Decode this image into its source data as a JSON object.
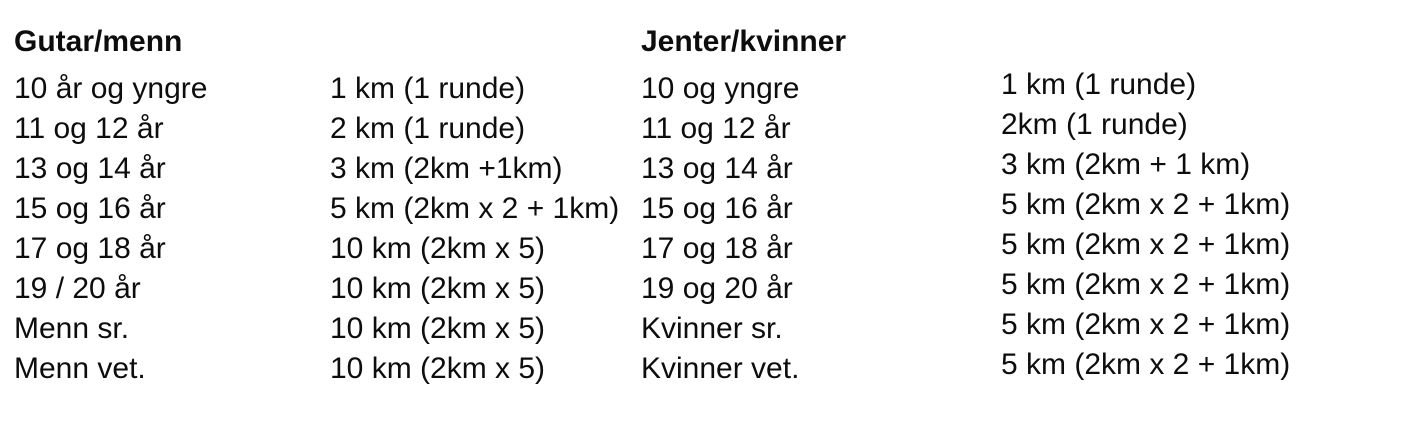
{
  "colors": {
    "text": "#0d0d0d",
    "background": "#ffffff"
  },
  "table": {
    "left": {
      "header": "Gutar/menn",
      "rows": [
        {
          "category": "10 år og yngre",
          "distance": "1 km (1 runde)"
        },
        {
          "category": "11 og 12 år",
          "distance": "2 km (1 runde)"
        },
        {
          "category": "13 og 14 år",
          "distance": "3 km (2km +1km)"
        },
        {
          "category": "15 og 16 år",
          "distance": "5 km (2km x 2 + 1km)"
        },
        {
          "category": "17 og 18 år",
          "distance": "10 km (2km x 5)"
        },
        {
          "category": "19 / 20 år",
          "distance": "10 km (2km x 5)"
        },
        {
          "category": "Menn sr.",
          "distance": "10 km (2km x 5)"
        },
        {
          "category": "Menn vet.",
          "distance": "10 km (2km x 5)"
        }
      ]
    },
    "right": {
      "header": "Jenter/kvinner",
      "rows": [
        {
          "category": "10 og yngre",
          "distance": "1 km (1 runde)"
        },
        {
          "category": "11 og 12 år",
          "distance": "2km (1 runde)"
        },
        {
          "category": "13 og 14 år",
          "distance": "3 km (2km + 1 km)"
        },
        {
          "category": "15 og 16 år",
          "distance": "5 km (2km x 2 + 1km)"
        },
        {
          "category": "17 og 18 år",
          "distance": "5 km (2km x 2 + 1km)"
        },
        {
          "category": "19 og 20 år",
          "distance": "5 km (2km x 2 + 1km)"
        },
        {
          "category": "Kvinner sr.",
          "distance": "5 km (2km x 2 + 1km)"
        },
        {
          "category": "Kvinner vet.",
          "distance": "5 km (2km x 2 + 1km)"
        }
      ]
    }
  }
}
